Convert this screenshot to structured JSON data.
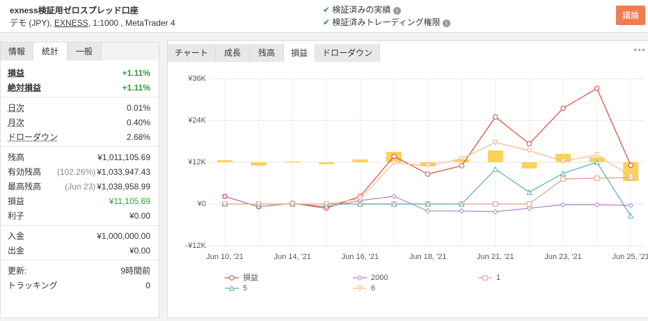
{
  "header": {
    "title": "exness検証用ゼロスプレッド口座",
    "subtitle_before": "デモ (JPY), ",
    "subtitle_link": "EXNESS",
    "subtitle_after": ", 1:1000 , MetaTrader 4",
    "verified": [
      "検証済みの実績",
      "検証済みトレーディング権限"
    ],
    "button": "議論"
  },
  "left_tabs": [
    "情報",
    "統計",
    "一般"
  ],
  "left_active": 1,
  "stats": [
    [
      {
        "label": "損益",
        "value": "+1.11%",
        "green": true,
        "bold": true
      },
      {
        "label": "絶対損益",
        "value": "+1.11%",
        "green": true,
        "bold": true
      }
    ],
    [
      {
        "label": "日次",
        "value": "0.01%"
      },
      {
        "label": "月次",
        "value": "0.40%"
      },
      {
        "label": "ドローダウン",
        "value": "2.68%"
      }
    ],
    [
      {
        "label": "残高",
        "value": "¥1,011,105.69"
      },
      {
        "label": "有効残高",
        "note": "(102.26%)",
        "value": "¥1,033,947.43"
      },
      {
        "label": "最高残高",
        "note": "(Jun 23)",
        "value": "¥1,038,958.99"
      },
      {
        "label": "損益",
        "value": "¥11,105.69",
        "green": true
      },
      {
        "label": "利子",
        "value": "¥0.00"
      }
    ],
    [
      {
        "label": "入金",
        "value": "¥1,000,000.00"
      },
      {
        "label": "出金",
        "value": "¥0.00"
      }
    ],
    [
      {
        "label": "更新:",
        "value": "9時間前"
      },
      {
        "label": "トラッキング",
        "value": "0"
      }
    ]
  ],
  "chart_tabs": [
    "チャート",
    "成長",
    "残高",
    "損益",
    "ドローダウン"
  ],
  "chart_active": 3,
  "chart_data": {
    "type": "line",
    "categories": [
      "Jun 10, '21",
      null,
      "Jun 14, '21",
      null,
      "Jun 16, '21",
      null,
      "Jun 18, '21",
      null,
      "Jun 21, '21",
      null,
      "Jun 23, '21",
      null,
      "Jun 25, '21"
    ],
    "ylim": [
      -12000,
      36000
    ],
    "yticks": [
      {
        "value": -12000,
        "label": "-¥12K"
      },
      {
        "value": 0,
        "label": "¥0"
      },
      {
        "value": 12000,
        "label": "¥12K"
      },
      {
        "value": 24000,
        "label": "¥24K"
      },
      {
        "value": 36000,
        "label": "¥36K"
      }
    ],
    "grid": true,
    "bars": {
      "color": "#fdd25a",
      "base": 12000,
      "values": [
        600,
        -1000,
        200,
        -600,
        800,
        3000,
        -1200,
        800,
        3400,
        -1800,
        2400,
        1400,
        -5400
      ]
    },
    "series": [
      {
        "name": "損益",
        "color": "#e0453a",
        "marker": "circle",
        "values": [
          2200,
          -800,
          200,
          -1200,
          2200,
          13700,
          8600,
          11000,
          25000,
          17300,
          27500,
          33200,
          11100
        ]
      },
      {
        "name": "2000",
        "color": "#b184c9",
        "marker": "diamond",
        "values": [
          2200,
          -800,
          200,
          -800,
          1000,
          2200,
          -2000,
          -2000,
          -2200,
          -1200,
          -200,
          -200,
          -400
        ]
      },
      {
        "name": "1",
        "color": "#e89a8a",
        "marker": "square",
        "values": [
          0,
          0,
          0,
          0,
          0,
          0,
          0,
          0,
          0,
          0,
          7200,
          7400,
          7600
        ]
      },
      {
        "name": "5",
        "color": "#4fb3b0",
        "marker": "triangle",
        "values": [
          0,
          0,
          0,
          0,
          0,
          0,
          0,
          0,
          10000,
          3400,
          8800,
          12000,
          -3400
        ]
      },
      {
        "name": "6",
        "color": "#fbb98a",
        "marker": "triangle-down",
        "values": [
          0,
          0,
          0,
          0,
          1500,
          11800,
          11000,
          13000,
          17700,
          15300,
          12300,
          14100,
          8000
        ]
      }
    ]
  }
}
